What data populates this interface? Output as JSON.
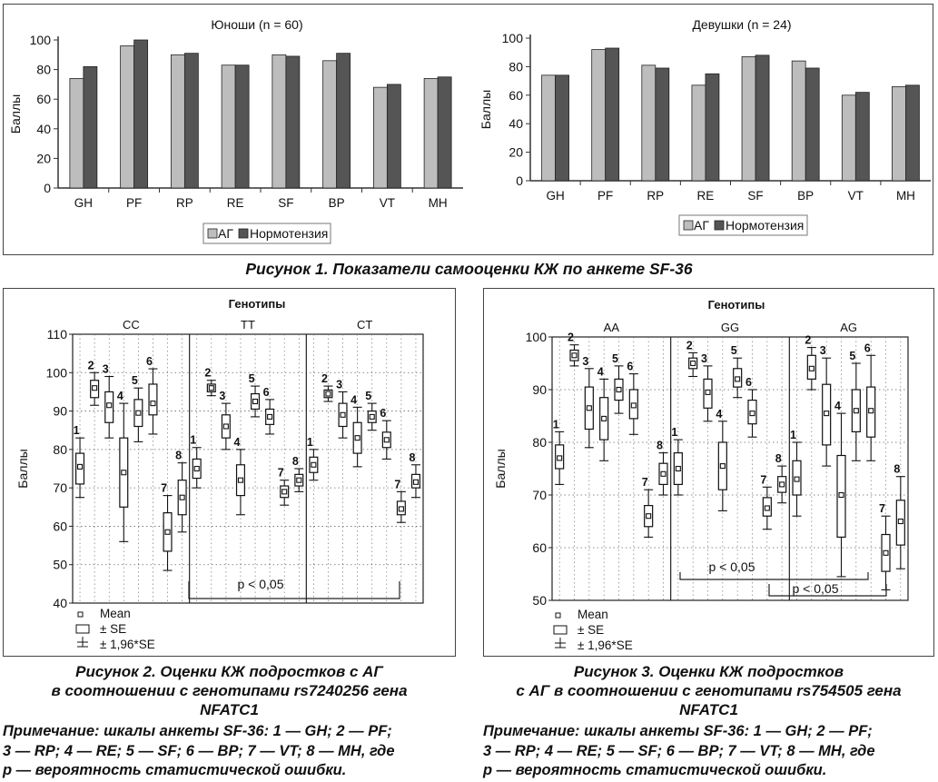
{
  "figure1": {
    "caption": "Рисунок 1. Показатели самооценки КЖ по анкете SF-36",
    "legend": [
      "АГ",
      "Нормотензия"
    ],
    "colors": {
      "ag": "#bdbdbd",
      "norm": "#555555"
    }
  },
  "figure2": {
    "caption_lines": [
      "Рисунок 2. Оценки КЖ подростков с АГ",
      "в соотношении с генотипами rs7240256 гена",
      "NFATC1"
    ],
    "note_lines": [
      "Примечание: шкалы анкеты SF-36: 1 — GH; 2 — PF;",
      "3 — RP; 4 — RE; 5 — SF; 6 — BP; 7 — VT; 8 — MH, где",
      "p — вероятность статистической ошибки."
    ]
  },
  "figure3": {
    "caption_lines": [
      "Рисунок 3. Оценки КЖ подростков",
      "с АГ в соотношении с генотипами rs754505 гена",
      "NFATC1"
    ],
    "note_lines": [
      "Примечание: шкалы анкеты SF-36: 1 — GH; 2 — PF;",
      "3 — RP; 4 — RE; 5 — SF; 6 — BP; 7 — VT; 8 — MH, где",
      "p — вероятность статистической ошибки."
    ]
  },
  "chart_data": [
    {
      "type": "bar",
      "title": "Юноши (n = 60)",
      "ylabel": "Баллы",
      "ylim": [
        0,
        100
      ],
      "yticks": [
        0,
        20,
        40,
        60,
        80,
        100
      ],
      "categories": [
        "GH",
        "PF",
        "RP",
        "RE",
        "SF",
        "BP",
        "VT",
        "MH"
      ],
      "series": [
        {
          "name": "АГ",
          "values": [
            74,
            96,
            90,
            83,
            90,
            86,
            68,
            74
          ]
        },
        {
          "name": "Нормотензия",
          "values": [
            82,
            100,
            91,
            83,
            89,
            91,
            70,
            75
          ]
        }
      ],
      "legend": "bottom-center"
    },
    {
      "type": "bar",
      "title": "Девушки (n = 24)",
      "ylabel": "Баллы",
      "ylim": [
        0,
        100
      ],
      "yticks": [
        0,
        20,
        40,
        60,
        80,
        100
      ],
      "categories": [
        "GH",
        "PF",
        "RP",
        "RE",
        "SF",
        "BP",
        "VT",
        "MH"
      ],
      "series": [
        {
          "name": "АГ",
          "values": [
            74,
            92,
            81,
            67,
            87,
            84,
            60,
            66
          ]
        },
        {
          "name": "Нормотензия",
          "values": [
            74,
            93,
            79,
            75,
            88,
            79,
            62,
            67
          ]
        }
      ],
      "legend": "bottom-center"
    },
    {
      "type": "box",
      "title": "Генотипы",
      "ylabel": "Баллы",
      "ylim": [
        40,
        110
      ],
      "yticks": [
        40,
        50,
        60,
        70,
        80,
        90,
        100,
        110
      ],
      "groups": [
        {
          "name": "CC",
          "scales": [
            {
              "label": "1",
              "mean": 75.5,
              "se": [
                71,
                79
              ],
              "ci": [
                67.5,
                83
              ]
            },
            {
              "label": "2",
              "mean": 96,
              "se": [
                93.5,
                98
              ],
              "ci": [
                91.5,
                100
              ]
            },
            {
              "label": "3",
              "mean": 91.5,
              "se": [
                87,
                95
              ],
              "ci": [
                83,
                99
              ]
            },
            {
              "label": "4",
              "mean": 74,
              "se": [
                65,
                83
              ],
              "ci": [
                56,
                92
              ]
            },
            {
              "label": "5",
              "mean": 89.5,
              "se": [
                86,
                93
              ],
              "ci": [
                82,
                96
              ]
            },
            {
              "label": "6",
              "mean": 92,
              "se": [
                89,
                97
              ],
              "ci": [
                84,
                101
              ]
            },
            {
              "label": "7",
              "mean": 58.5,
              "se": [
                53.5,
                63.5
              ],
              "ci": [
                48.5,
                68
              ]
            },
            {
              "label": "8",
              "mean": 67.5,
              "se": [
                63,
                72
              ],
              "ci": [
                58.5,
                76.5
              ]
            }
          ]
        },
        {
          "name": "TT",
          "scales": [
            {
              "label": "1",
              "mean": 75,
              "se": [
                72.5,
                77.5
              ],
              "ci": [
                70,
                80.5
              ]
            },
            {
              "label": "2",
              "mean": 96,
              "se": [
                95,
                97
              ],
              "ci": [
                94,
                98
              ]
            },
            {
              "label": "3",
              "mean": 86,
              "se": [
                83,
                89
              ],
              "ci": [
                80,
                92
              ]
            },
            {
              "label": "4",
              "mean": 72,
              "se": [
                68,
                76
              ],
              "ci": [
                63,
                80
              ]
            },
            {
              "label": "5",
              "mean": 92.5,
              "se": [
                90.5,
                94.5
              ],
              "ci": [
                88.5,
                96.5
              ]
            },
            {
              "label": "6",
              "mean": 88.5,
              "se": [
                86.5,
                90.5
              ],
              "ci": [
                84,
                93
              ]
            },
            {
              "label": "7",
              "mean": 69,
              "se": [
                67.5,
                70.5
              ],
              "ci": [
                65.5,
                72
              ]
            },
            {
              "label": "8",
              "mean": 72,
              "se": [
                70.5,
                73.5
              ],
              "ci": [
                69,
                75
              ]
            }
          ]
        },
        {
          "name": "CT",
          "scales": [
            {
              "label": "1",
              "mean": 76,
              "se": [
                74,
                78
              ],
              "ci": [
                72,
                80
              ]
            },
            {
              "label": "2",
              "mean": 94.5,
              "se": [
                93.5,
                95.5
              ],
              "ci": [
                92.5,
                96.5
              ]
            },
            {
              "label": "3",
              "mean": 89,
              "se": [
                86,
                92
              ],
              "ci": [
                83,
                95
              ]
            },
            {
              "label": "4",
              "mean": 83,
              "se": [
                79,
                87
              ],
              "ci": [
                75.5,
                91
              ]
            },
            {
              "label": "5",
              "mean": 88.5,
              "se": [
                87,
                90
              ],
              "ci": [
                85,
                92
              ]
            },
            {
              "label": "6",
              "mean": 82.5,
              "se": [
                80.5,
                84.5
              ],
              "ci": [
                77.5,
                87.5
              ]
            },
            {
              "label": "7",
              "mean": 64.5,
              "se": [
                63,
                66.5
              ],
              "ci": [
                61,
                69
              ]
            },
            {
              "label": "8",
              "mean": 71.5,
              "se": [
                70,
                73.5
              ],
              "ci": [
                67.5,
                76
              ]
            }
          ]
        }
      ],
      "annotations": [
        {
          "text": "p < 0,05"
        }
      ],
      "legend_items": [
        "Mean",
        "± SE",
        "± 1,96*SE"
      ],
      "legend": "bottom-left"
    },
    {
      "type": "box",
      "title": "Генотипы",
      "ylabel": "Баллы",
      "ylim": [
        50,
        100
      ],
      "yticks": [
        50,
        60,
        70,
        80,
        90,
        100
      ],
      "groups": [
        {
          "name": "AA",
          "scales": [
            {
              "label": "1",
              "mean": 77,
              "se": [
                75,
                79.5
              ],
              "ci": [
                72,
                82
              ]
            },
            {
              "label": "2",
              "mean": 96.5,
              "se": [
                95.5,
                97.5
              ],
              "ci": [
                94.5,
                98.5
              ]
            },
            {
              "label": "3",
              "mean": 86.5,
              "se": [
                82.5,
                90.5
              ],
              "ci": [
                79,
                94
              ]
            },
            {
              "label": "4",
              "mean": 84.5,
              "se": [
                80.5,
                88.5
              ],
              "ci": [
                76.5,
                92
              ]
            },
            {
              "label": "5",
              "mean": 90,
              "se": [
                88,
                92
              ],
              "ci": [
                85.5,
                94.5
              ]
            },
            {
              "label": "6",
              "mean": 87,
              "se": [
                84.5,
                90
              ],
              "ci": [
                81.5,
                93
              ]
            },
            {
              "label": "7",
              "mean": 66,
              "se": [
                64,
                68
              ],
              "ci": [
                62,
                71
              ]
            },
            {
              "label": "8",
              "mean": 74,
              "se": [
                72,
                76
              ],
              "ci": [
                70,
                78
              ]
            }
          ]
        },
        {
          "name": "GG",
          "scales": [
            {
              "label": "1",
              "mean": 75,
              "se": [
                72,
                78
              ],
              "ci": [
                70,
                80.5
              ]
            },
            {
              "label": "2",
              "mean": 95,
              "se": [
                94,
                96
              ],
              "ci": [
                92.5,
                97
              ]
            },
            {
              "label": "3",
              "mean": 89.5,
              "se": [
                86.5,
                92
              ],
              "ci": [
                84,
                94.5
              ]
            },
            {
              "label": "4",
              "mean": 75.5,
              "se": [
                71,
                80
              ],
              "ci": [
                67,
                84
              ]
            },
            {
              "label": "5",
              "mean": 92,
              "se": [
                90.5,
                94
              ],
              "ci": [
                88.5,
                96
              ]
            },
            {
              "label": "6",
              "mean": 85.5,
              "se": [
                83.5,
                88
              ],
              "ci": [
                81,
                90
              ]
            },
            {
              "label": "7",
              "mean": 67.5,
              "se": [
                66,
                69.5
              ],
              "ci": [
                63.5,
                71.5
              ]
            },
            {
              "label": "8",
              "mean": 72,
              "se": [
                70.5,
                73.5
              ],
              "ci": [
                68.5,
                75.5
              ]
            }
          ]
        },
        {
          "name": "AG",
          "scales": [
            {
              "label": "1",
              "mean": 73,
              "se": [
                70,
                76.5
              ],
              "ci": [
                66,
                80
              ]
            },
            {
              "label": "2",
              "mean": 94,
              "se": [
                92,
                96.5
              ],
              "ci": [
                90,
                98
              ]
            },
            {
              "label": "3",
              "mean": 85.5,
              "se": [
                79.5,
                91
              ],
              "ci": [
                75.5,
                96
              ]
            },
            {
              "label": "4",
              "mean": 70,
              "se": [
                62,
                77.5
              ],
              "ci": [
                54.5,
                85.5
              ]
            },
            {
              "label": "5",
              "mean": 86,
              "se": [
                82,
                90
              ],
              "ci": [
                76.5,
                95
              ]
            },
            {
              "label": "6",
              "mean": 86,
              "se": [
                81,
                90.5
              ],
              "ci": [
                76.5,
                96.5
              ]
            },
            {
              "label": "7",
              "mean": 59,
              "se": [
                55.5,
                62.5
              ],
              "ci": [
                52,
                66
              ]
            },
            {
              "label": "8",
              "mean": 65,
              "se": [
                60.5,
                69
              ],
              "ci": [
                56,
                73.5
              ]
            }
          ]
        }
      ],
      "annotations": [
        {
          "text": "p < 0,05"
        },
        {
          "text": "p < 0,05"
        }
      ],
      "legend_items": [
        "Mean",
        "± SE",
        "± 1,96*SE"
      ],
      "legend": "bottom-left"
    }
  ]
}
